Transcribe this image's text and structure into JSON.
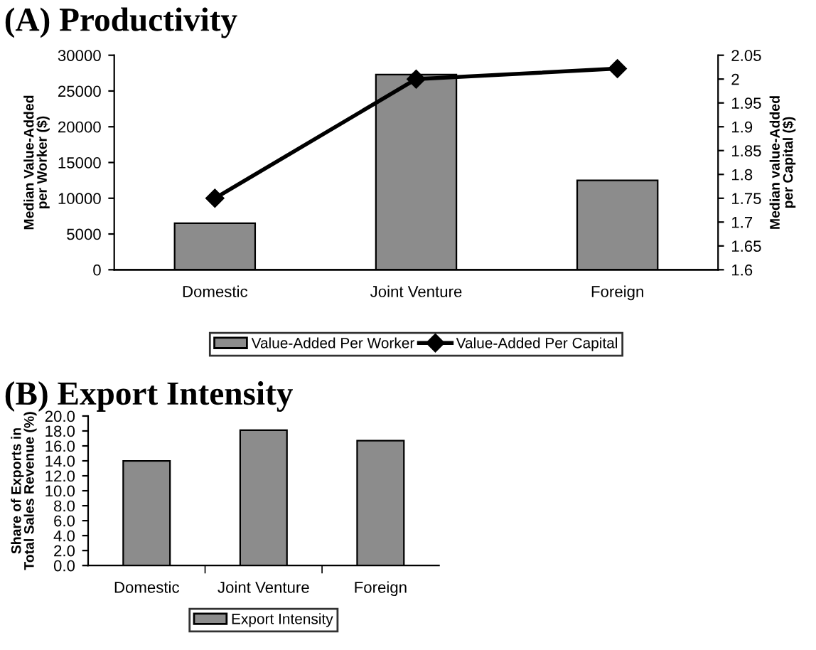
{
  "chart_data": [
    {
      "type": "bar",
      "title": "(A) Productivity",
      "categories": [
        "Domestic",
        "Joint Venture",
        "Foreign"
      ],
      "ylabel": "Median Value-Added per Worker ($)",
      "y2label": "Median value-Added per Capital ($)",
      "series": [
        {
          "name": "Value-Added Per Worker",
          "type": "bar",
          "color": "#8c8c8c",
          "values": [
            6500,
            27300,
            12500
          ]
        },
        {
          "name": "Value-Added Per Capital",
          "type": "line",
          "axis": "y2",
          "color": "#000000",
          "marker": "diamond",
          "values": [
            1.75,
            2.0,
            2.022
          ]
        }
      ],
      "ylim": [
        0,
        30000
      ],
      "yticks": [
        0,
        5000,
        10000,
        15000,
        20000,
        25000,
        30000
      ],
      "y2lim": [
        1.6,
        2.05
      ],
      "y2ticks": [
        1.6,
        1.65,
        1.7,
        1.75,
        1.8,
        1.85,
        1.9,
        1.95,
        2,
        2.05
      ],
      "grid": false,
      "legend": "bottom"
    },
    {
      "type": "bar",
      "title": "(B) Export Intensity",
      "categories": [
        "Domestic",
        "Joint Venture",
        "Foreign"
      ],
      "ylabel": "Share of Exports in Total Sales Revenue (%)",
      "series": [
        {
          "name": "Export Intensity",
          "color": "#8c8c8c",
          "values": [
            14.0,
            18.1,
            16.7
          ]
        }
      ],
      "ylim": [
        0,
        20
      ],
      "yticks": [
        {
          "value": 0,
          "label": "0.0"
        },
        {
          "value": 2,
          "label": "2.0"
        },
        {
          "value": 4,
          "label": "4.0"
        },
        {
          "value": 6,
          "label": "6.0"
        },
        {
          "value": 8,
          "label": "8.0"
        },
        {
          "value": 10,
          "label": "10.0"
        },
        {
          "value": 12,
          "label": "12.0"
        },
        {
          "value": 14,
          "label": "14.0"
        },
        {
          "value": 16,
          "label": "16.0"
        },
        {
          "value": 18,
          "label": "18.0"
        },
        {
          "value": 20,
          "label": "20.0"
        }
      ],
      "grid": false,
      "legend": "bottom"
    }
  ]
}
